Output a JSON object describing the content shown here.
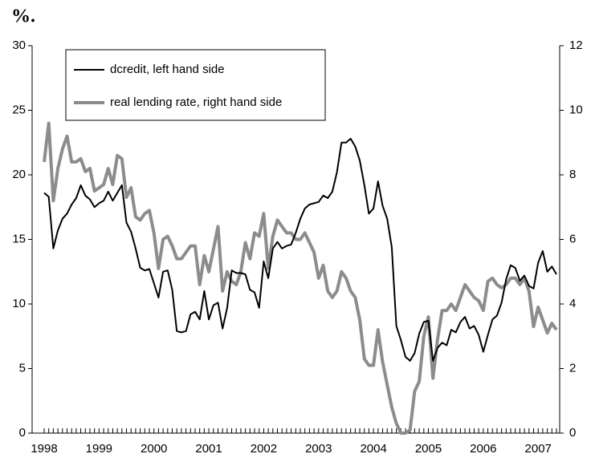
{
  "chart_data": {
    "type": "line",
    "title": "%.",
    "categories": [
      "1998",
      null,
      null,
      null,
      null,
      null,
      null,
      null,
      null,
      null,
      null,
      null,
      "1999",
      null,
      null,
      null,
      null,
      null,
      null,
      null,
      null,
      null,
      null,
      null,
      "2000",
      null,
      null,
      null,
      null,
      null,
      null,
      null,
      null,
      null,
      null,
      null,
      "2001",
      null,
      null,
      null,
      null,
      null,
      null,
      null,
      null,
      null,
      null,
      null,
      "2002",
      null,
      null,
      null,
      null,
      null,
      null,
      null,
      null,
      null,
      null,
      null,
      "2003",
      null,
      null,
      null,
      null,
      null,
      null,
      null,
      null,
      null,
      null,
      null,
      "2004",
      null,
      null,
      null,
      null,
      null,
      null,
      null,
      null,
      null,
      null,
      null,
      "2005",
      null,
      null,
      null,
      null,
      null,
      null,
      null,
      null,
      null,
      null,
      null,
      "2006",
      null,
      null,
      null,
      null,
      null,
      null,
      null,
      null,
      null,
      null,
      null,
      "2007",
      null,
      null,
      null,
      null
    ],
    "series": [
      {
        "name": "dcredit, left hand side",
        "color": "#000000",
        "values": [
          18.6,
          18.3,
          14.3,
          15.7,
          16.6,
          17.0,
          17.7,
          18.2,
          19.2,
          18.4,
          18.1,
          17.5,
          17.8,
          18.0,
          18.7,
          18.0,
          18.6,
          19.2,
          16.3,
          15.6,
          14.3,
          12.8,
          12.6,
          12.7,
          11.6,
          10.5,
          12.5,
          12.6,
          11.1,
          7.9,
          7.8,
          7.9,
          9.2,
          9.4,
          8.8,
          11.0,
          8.8,
          9.9,
          10.1,
          8.1,
          9.7,
          12.6,
          12.4,
          12.4,
          12.3,
          11.1,
          10.9,
          9.7,
          13.3,
          12.0,
          14.3,
          14.8,
          14.3,
          14.5,
          14.6,
          15.5,
          16.6,
          17.4,
          17.7,
          17.8,
          17.9,
          18.4,
          18.2,
          18.7,
          20.2,
          22.5,
          22.5,
          22.8,
          22.2,
          21.1,
          19.2,
          17.0,
          17.4,
          19.5,
          17.6,
          16.6,
          14.4,
          8.3,
          7.2,
          5.9,
          5.6,
          6.2,
          7.7,
          8.6,
          8.7,
          5.6,
          6.6,
          7.0,
          6.8,
          8.0,
          7.8,
          8.6,
          9.0,
          8.1,
          8.3,
          7.6,
          6.3,
          7.6,
          8.8,
          9.1,
          10.1,
          11.9,
          13.0,
          12.8,
          11.8,
          12.2,
          11.4,
          11.2,
          13.2,
          14.1,
          12.5,
          12.9,
          12.3
        ]
      },
      {
        "name": "real lending rate, right hand side",
        "color": "#8c8c8c",
        "axis": "y2",
        "values": [
          8.4,
          9.6,
          7.2,
          8.2,
          8.8,
          9.2,
          8.4,
          8.4,
          8.5,
          8.1,
          8.2,
          7.5,
          7.6,
          7.7,
          8.2,
          7.7,
          8.6,
          8.5,
          7.3,
          7.6,
          6.7,
          6.6,
          6.8,
          6.9,
          6.2,
          5.1,
          6.0,
          6.1,
          5.8,
          5.4,
          5.4,
          5.6,
          5.8,
          5.8,
          4.6,
          5.5,
          5.0,
          5.7,
          6.4,
          4.4,
          5.0,
          4.7,
          4.6,
          5.0,
          5.9,
          5.4,
          6.2,
          6.1,
          6.8,
          5.1,
          6.1,
          6.6,
          6.4,
          6.2,
          6.2,
          6.0,
          6.0,
          6.2,
          5.9,
          5.6,
          4.8,
          5.2,
          4.4,
          4.2,
          4.4,
          5.0,
          4.8,
          4.4,
          4.2,
          3.5,
          2.3,
          2.1,
          2.1,
          3.2,
          2.2,
          1.5,
          0.8,
          0.3,
          0.0,
          0.0,
          0.1,
          1.3,
          1.6,
          3.0,
          3.6,
          1.7,
          2.9,
          3.8,
          3.8,
          4.0,
          3.8,
          4.2,
          4.6,
          4.4,
          4.2,
          4.1,
          3.8,
          4.7,
          4.8,
          4.6,
          4.5,
          4.6,
          4.8,
          4.8,
          4.6,
          4.8,
          4.4,
          3.3,
          3.9,
          3.5,
          3.1,
          3.4,
          3.2
        ]
      }
    ],
    "ylim": [
      0,
      30
    ],
    "yticks": [
      0,
      5,
      10,
      15,
      20,
      25,
      30
    ],
    "y2lim": [
      0,
      12
    ],
    "y2ticks": [
      0,
      2,
      4,
      6,
      8,
      10,
      12
    ],
    "legend": "upper left"
  }
}
